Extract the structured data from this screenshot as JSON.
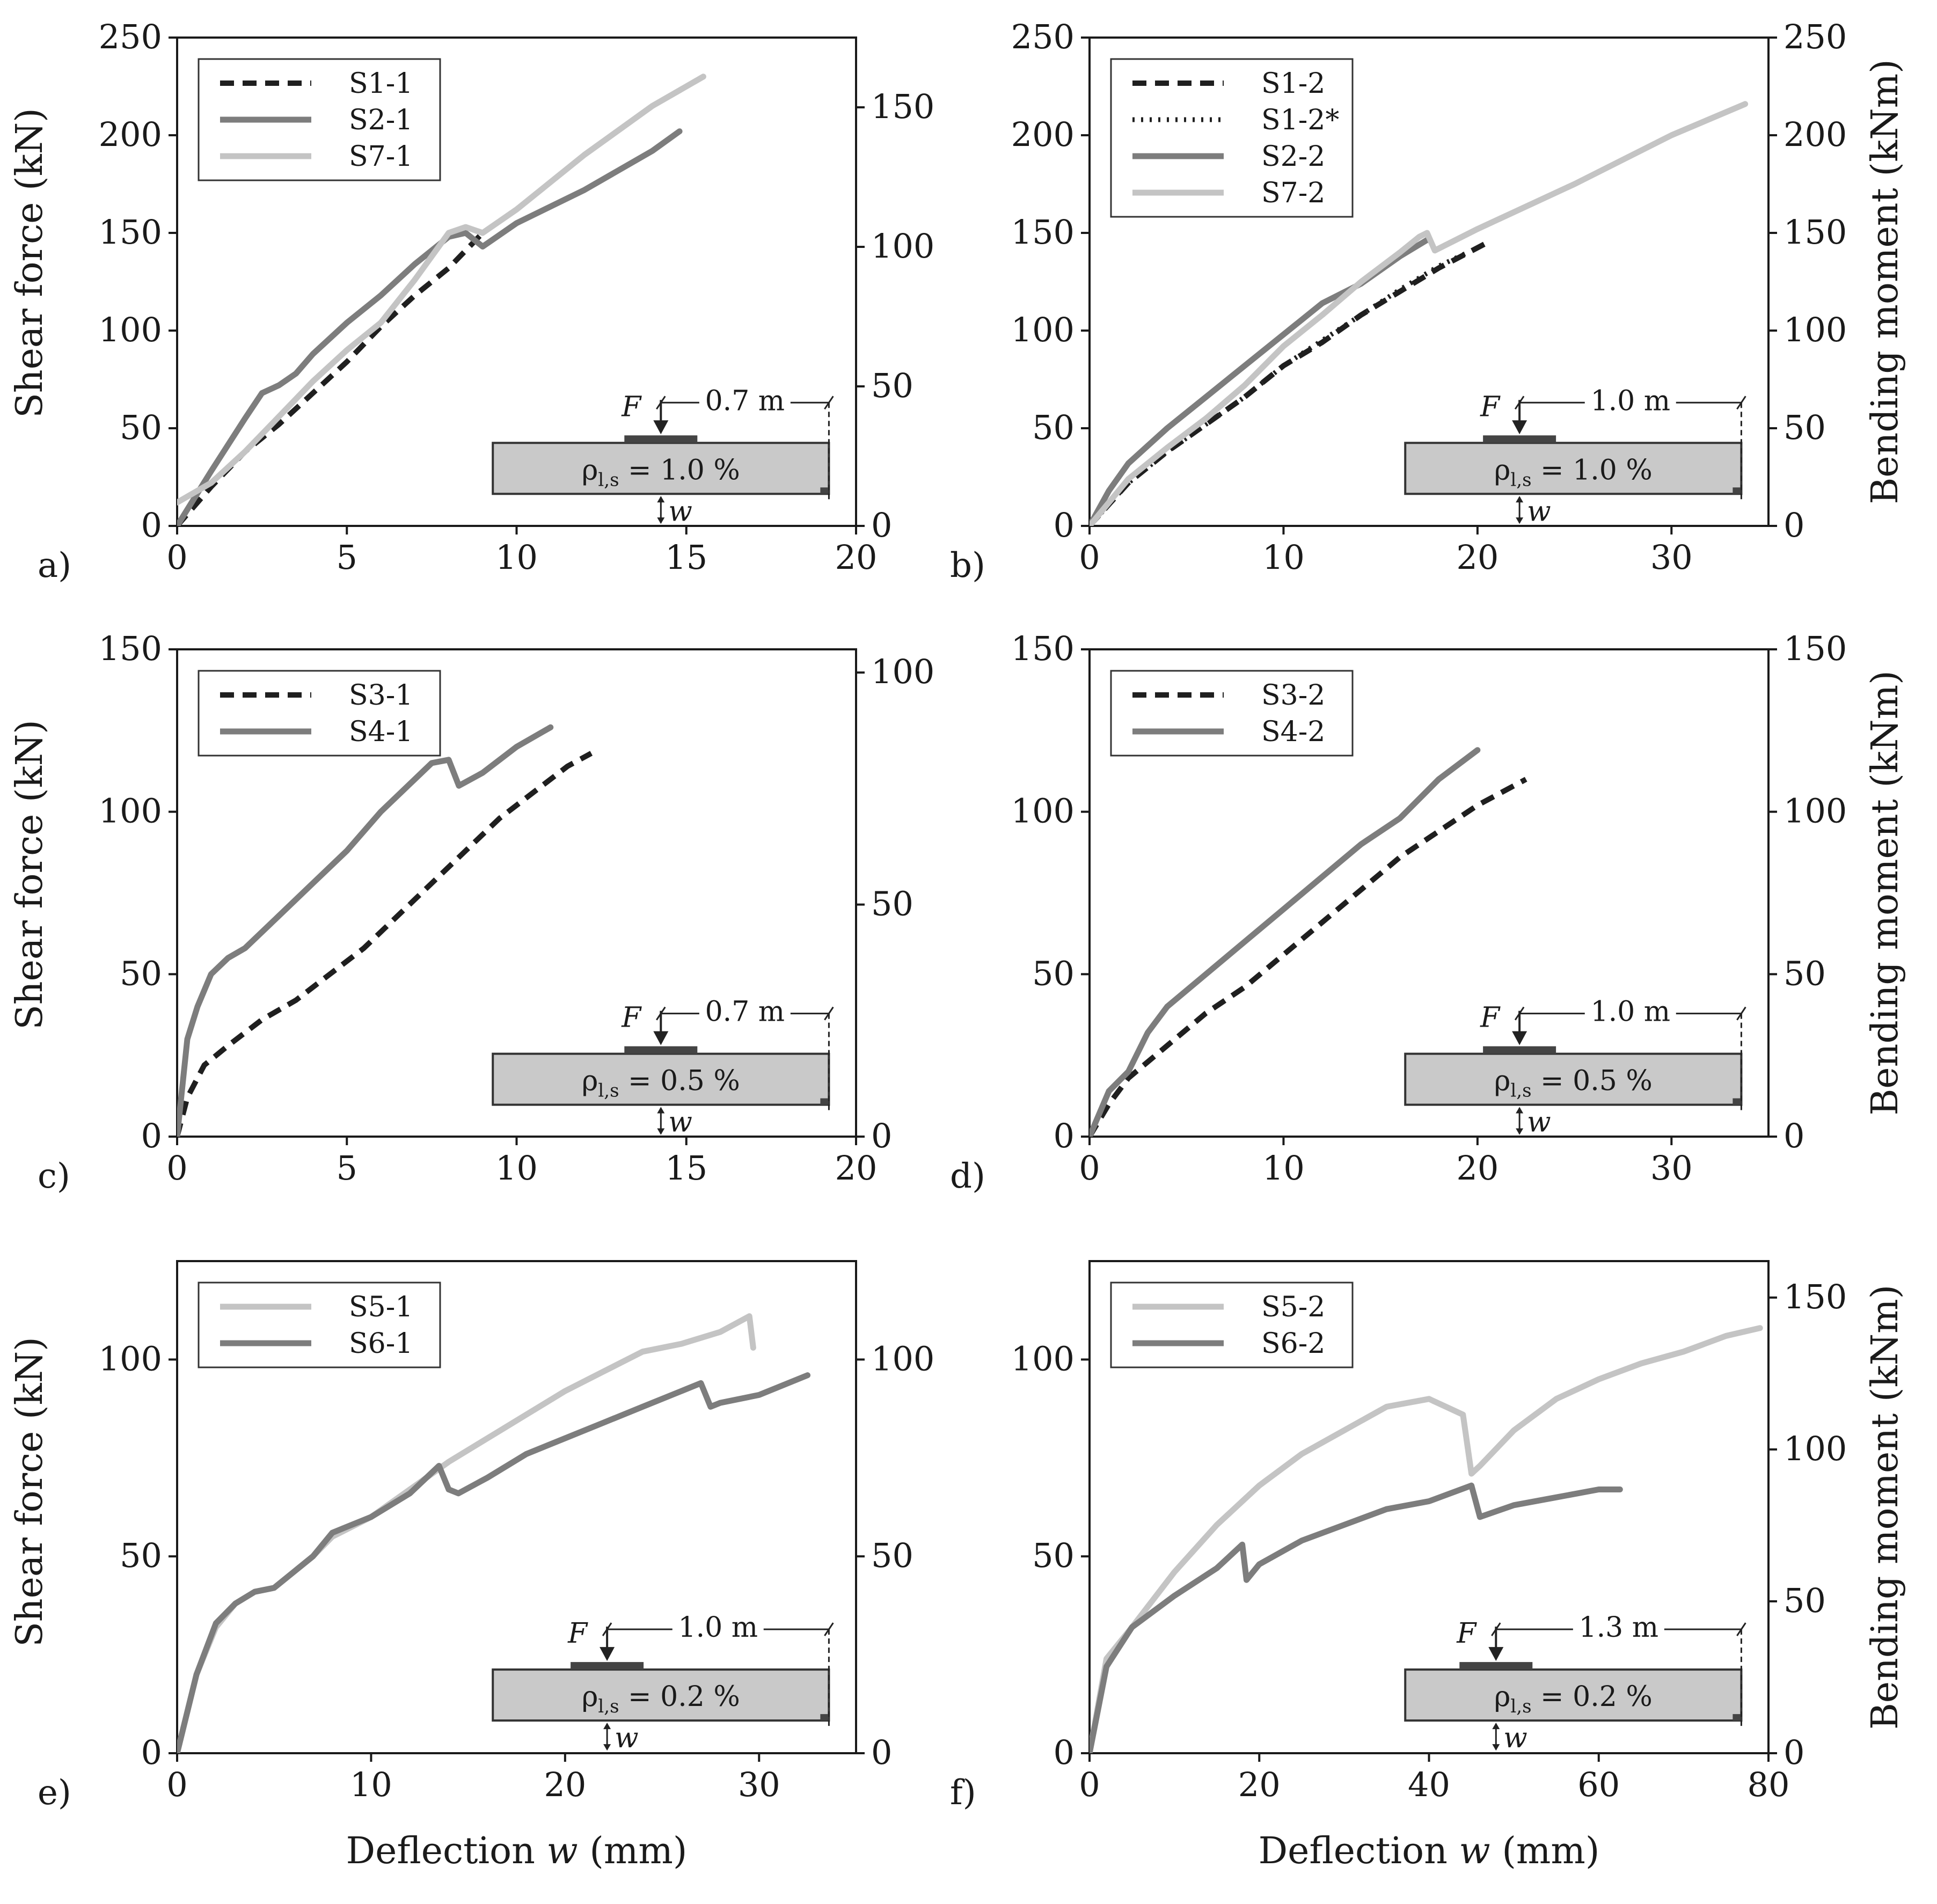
{
  "figure": {
    "x_axis_label": "Deflection",
    "x_axis_var": "w",
    "x_axis_unit": "(mm)",
    "y_left_label": "Shear force (kN)",
    "y_right_label": "Bending moment (kNm)"
  },
  "styles": {
    "S1": {
      "color": "#1f1f1f",
      "dash": "dashed"
    },
    "S1*": {
      "color": "#1f1f1f",
      "dash": "dotted"
    },
    "S2": {
      "color": "#7d7d7d",
      "dash": "solid"
    },
    "S3": {
      "color": "#1f1f1f",
      "dash": "dashed"
    },
    "S4": {
      "color": "#7d7d7d",
      "dash": "solid"
    },
    "S5": {
      "color": "#1f1f1f",
      "dash": "dashed"
    },
    "S6": {
      "color": "#7d7d7d",
      "dash": "solid"
    },
    "S7": {
      "color": "#c4c4c4",
      "dash": "solid"
    }
  },
  "chart_data": [
    {
      "type": "line",
      "panel_label": "a)",
      "xlim": [
        0,
        20
      ],
      "ylim": [
        0,
        250
      ],
      "y2lim": [
        0,
        175
      ],
      "xticks": [
        "0",
        "5",
        "10",
        "15",
        "20"
      ],
      "yticks": [
        "0",
        "50",
        "100",
        "150",
        "200",
        "250"
      ],
      "y2ticks": [
        "0",
        "50",
        "100",
        "150"
      ],
      "right_title": false,
      "bottom_title": false,
      "inset": {
        "span": "0.7 m",
        "rho": "ρ",
        "rho_sub": "l,s",
        "rho_val": "= 1.0 %",
        "force": "F",
        "w": "w",
        "load_at": 0.5
      },
      "series": [
        {
          "name": "S1-1",
          "style": "S1",
          "x": [
            0,
            1,
            2,
            3,
            4,
            5,
            6,
            7,
            8,
            9
          ],
          "y": [
            0,
            20,
            38,
            52,
            68,
            84,
            102,
            118,
            132,
            150
          ]
        },
        {
          "name": "S2-1",
          "style": "S2",
          "x": [
            0,
            1,
            2,
            2.5,
            3,
            3.5,
            4,
            5,
            6,
            7,
            8,
            8.5,
            9,
            10,
            12,
            14,
            14.8
          ],
          "y": [
            0,
            28,
            55,
            68,
            72,
            78,
            88,
            104,
            118,
            134,
            148,
            150,
            143,
            155,
            172,
            192,
            202
          ]
        },
        {
          "name": "S7-1",
          "style": "S7",
          "x": [
            0,
            0.3,
            1,
            2,
            3,
            4,
            5,
            6,
            7,
            8,
            8.5,
            9,
            10,
            12,
            14,
            15.5
          ],
          "y": [
            12,
            15,
            22,
            38,
            56,
            74,
            90,
            104,
            126,
            150,
            153,
            150,
            162,
            190,
            215,
            230
          ]
        }
      ]
    },
    {
      "type": "line",
      "panel_label": "b)",
      "xlim": [
        0,
        35
      ],
      "ylim": [
        0,
        250
      ],
      "y2lim": [
        0,
        250
      ],
      "xticks": [
        "0",
        "10",
        "20",
        "30"
      ],
      "yticks": [
        "0",
        "50",
        "100",
        "150",
        "200",
        "250"
      ],
      "y2ticks": [
        "0",
        "50",
        "100",
        "150",
        "200",
        "250"
      ],
      "right_title": true,
      "bottom_title": false,
      "inset": {
        "span": "1.0 m",
        "rho": "ρ",
        "rho_sub": "l,s",
        "rho_val": "= 1.0 %",
        "force": "F",
        "w": "w",
        "load_at": 0.34
      },
      "series": [
        {
          "name": "S1-2",
          "style": "S1",
          "x": [
            0,
            2,
            4,
            6,
            8,
            10,
            12,
            14,
            16,
            18,
            20.5
          ],
          "y": [
            0,
            22,
            38,
            52,
            66,
            82,
            94,
            108,
            120,
            132,
            145
          ]
        },
        {
          "name": "S1-2*",
          "style": "S1*",
          "x": [
            0,
            2,
            4,
            6,
            8,
            10,
            12,
            14,
            16,
            18,
            19.5
          ],
          "y": [
            0,
            22,
            38,
            52,
            66,
            82,
            95,
            108,
            121,
            133,
            140
          ]
        },
        {
          "name": "S2-2",
          "style": "S2",
          "x": [
            0,
            1,
            2,
            4,
            6,
            8,
            10,
            12,
            14,
            16,
            17.5
          ],
          "y": [
            0,
            18,
            32,
            50,
            66,
            82,
            98,
            114,
            124,
            138,
            147
          ]
        },
        {
          "name": "S7-2",
          "style": "S7",
          "x": [
            0,
            2,
            4,
            6,
            8,
            10,
            12,
            14,
            16,
            17,
            17.4,
            17.8,
            20,
            25,
            30,
            33.8
          ],
          "y": [
            0,
            24,
            40,
            55,
            72,
            92,
            108,
            125,
            140,
            148,
            150,
            141,
            152,
            175,
            200,
            216
          ]
        }
      ]
    },
    {
      "type": "line",
      "panel_label": "c)",
      "xlim": [
        0,
        20
      ],
      "ylim": [
        0,
        150
      ],
      "y2lim": [
        0,
        105
      ],
      "xticks": [
        "0",
        "5",
        "10",
        "15",
        "20"
      ],
      "yticks": [
        "0",
        "50",
        "100",
        "150"
      ],
      "y2ticks": [
        "0",
        "50",
        "100"
      ],
      "right_title": false,
      "bottom_title": false,
      "inset": {
        "span": "0.7 m",
        "rho": "ρ",
        "rho_sub": "l,s",
        "rho_val": "= 0.5 %",
        "force": "F",
        "w": "w",
        "load_at": 0.5
      },
      "series": [
        {
          "name": "S3-1",
          "style": "S3",
          "x": [
            0,
            0.3,
            0.8,
            1.5,
            2.5,
            3.5,
            4.5,
            5.5,
            6.5,
            7.5,
            8.5,
            9.5,
            10.5,
            11.5,
            12.2
          ],
          "y": [
            0,
            12,
            22,
            28,
            36,
            42,
            50,
            58,
            68,
            78,
            88,
            98,
            106,
            114,
            118
          ]
        },
        {
          "name": "S4-1",
          "style": "S4",
          "x": [
            0,
            0.3,
            0.6,
            1,
            1.5,
            2,
            3,
            4,
            5,
            6,
            7,
            7.5,
            8,
            8.3,
            9,
            10,
            11
          ],
          "y": [
            0,
            30,
            40,
            50,
            55,
            58,
            68,
            78,
            88,
            100,
            110,
            115,
            116,
            108,
            112,
            120,
            126
          ]
        }
      ]
    },
    {
      "type": "line",
      "panel_label": "d)",
      "xlim": [
        0,
        35
      ],
      "ylim": [
        0,
        150
      ],
      "y2lim": [
        0,
        150
      ],
      "xticks": [
        "0",
        "10",
        "20",
        "30"
      ],
      "yticks": [
        "0",
        "50",
        "100",
        "150"
      ],
      "y2ticks": [
        "0",
        "50",
        "100",
        "150"
      ],
      "right_title": true,
      "bottom_title": false,
      "inset": {
        "span": "1.0 m",
        "rho": "ρ",
        "rho_sub": "l,s",
        "rho_val": "= 0.5 %",
        "force": "F",
        "w": "w",
        "load_at": 0.34
      },
      "series": [
        {
          "name": "S3-2",
          "style": "S3",
          "x": [
            0,
            1,
            2,
            4,
            6,
            8,
            10,
            12,
            14,
            16,
            18,
            20,
            22.5
          ],
          "y": [
            0,
            10,
            18,
            28,
            38,
            46,
            56,
            66,
            76,
            86,
            94,
            102,
            110
          ]
        },
        {
          "name": "S4-2",
          "style": "S4",
          "x": [
            0,
            1,
            2,
            3,
            4,
            6,
            8,
            10,
            12,
            14,
            16,
            18,
            20
          ],
          "y": [
            0,
            14,
            20,
            32,
            40,
            50,
            60,
            70,
            80,
            90,
            98,
            110,
            119
          ]
        }
      ]
    },
    {
      "type": "line",
      "panel_label": "e)",
      "xlim": [
        0,
        35
      ],
      "ylim": [
        0,
        125
      ],
      "y2lim": [
        0,
        125
      ],
      "xticks": [
        "0",
        "10",
        "20",
        "30"
      ],
      "yticks": [
        "0",
        "50",
        "100"
      ],
      "y2ticks": [
        "0",
        "50",
        "100"
      ],
      "right_title": false,
      "bottom_title": true,
      "inset": {
        "span": "1.0 m",
        "rho": "ρ",
        "rho_sub": "l,s",
        "rho_val": "= 0.2 %",
        "force": "F",
        "w": "w",
        "load_at": 0.34
      },
      "series": [
        {
          "name": "S5-1",
          "style": "S7",
          "x": [
            0,
            1,
            2,
            3,
            4,
            5,
            6,
            7,
            8,
            10,
            12,
            14,
            16,
            18,
            20,
            22,
            24,
            26,
            28,
            29.5,
            29.7
          ],
          "y": [
            0,
            20,
            32,
            38,
            41,
            42,
            46,
            50,
            55,
            60,
            67,
            74,
            80,
            86,
            92,
            97,
            102,
            104,
            107,
            111,
            103
          ]
        },
        {
          "name": "S6-1",
          "style": "S6",
          "x": [
            0,
            1,
            2,
            3,
            4,
            5,
            6,
            7,
            8,
            10,
            12,
            13.5,
            14,
            14.5,
            16,
            18,
            20,
            22,
            24,
            26,
            27,
            27.5,
            28,
            30,
            32.5
          ],
          "y": [
            0,
            20,
            33,
            38,
            41,
            42,
            46,
            50,
            56,
            60,
            66,
            73,
            67,
            66,
            70,
            76,
            80,
            84,
            88,
            92,
            94,
            88,
            89,
            91,
            96
          ]
        }
      ]
    },
    {
      "type": "line",
      "panel_label": "f)",
      "xlim": [
        0,
        80
      ],
      "ylim": [
        0,
        125
      ],
      "y2lim": [
        0,
        162
      ],
      "xticks": [
        "0",
        "20",
        "40",
        "60",
        "80"
      ],
      "yticks": [
        "0",
        "50",
        "100"
      ],
      "y2ticks": [
        "0",
        "50",
        "100",
        "150"
      ],
      "right_title": true,
      "bottom_title": true,
      "inset": {
        "span": "1.3 m",
        "rho": "ρ",
        "rho_sub": "l,s",
        "rho_val": "= 0.2 %",
        "force": "F",
        "w": "w",
        "load_at": 0.27
      },
      "series": [
        {
          "name": "S5-2",
          "style": "S7",
          "x": [
            0,
            2,
            5,
            10,
            15,
            20,
            25,
            30,
            35,
            40,
            42,
            44,
            45,
            46,
            50,
            55,
            60,
            65,
            70,
            75,
            79
          ],
          "y": [
            0,
            24,
            32,
            46,
            58,
            68,
            76,
            82,
            88,
            90,
            88,
            86,
            71,
            73,
            82,
            90,
            95,
            99,
            102,
            106,
            108
          ]
        },
        {
          "name": "S6-2",
          "style": "S6",
          "x": [
            0,
            2,
            5,
            10,
            15,
            18,
            18.5,
            20,
            25,
            30,
            35,
            40,
            45,
            46,
            50,
            55,
            60,
            62.5
          ],
          "y": [
            0,
            22,
            32,
            40,
            47,
            53,
            44,
            48,
            54,
            58,
            62,
            64,
            68,
            60,
            63,
            65,
            67,
            67
          ]
        }
      ]
    }
  ]
}
